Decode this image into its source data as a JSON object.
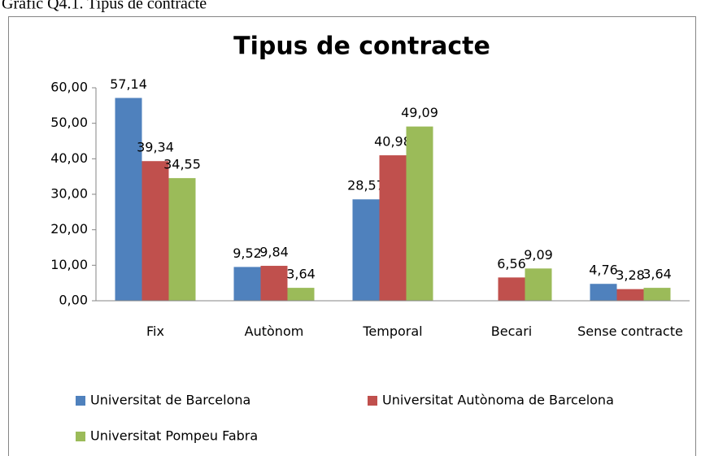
{
  "caption": "Grafic Q4.1. Tipus de contracte",
  "chart_data": {
    "type": "bar",
    "title": "Tipus de contracte",
    "categories": [
      "Fix",
      "Autònom",
      "Temporal",
      "Becari",
      "Sense contracte"
    ],
    "series": [
      {
        "name": "Universitat de Barcelona",
        "color": "#4f81bd",
        "values": [
          57.14,
          9.52,
          28.57,
          null,
          4.76
        ],
        "value_labels": [
          "57,14",
          "9,52",
          "28,57",
          null,
          "4,76"
        ]
      },
      {
        "name": "Universitat Autònoma de Barcelona",
        "color": "#c0504d",
        "values": [
          39.34,
          9.84,
          40.98,
          6.56,
          3.28
        ],
        "value_labels": [
          "39,34",
          "9,84",
          "40,98",
          "6,56",
          "3,28"
        ]
      },
      {
        "name": "Universitat Pompeu Fabra",
        "color": "#9bbb59",
        "values": [
          34.55,
          3.64,
          49.09,
          9.09,
          3.64
        ],
        "value_labels": [
          "34,55",
          "3,64",
          "49,09",
          "9,09",
          "3,64"
        ]
      }
    ],
    "ylim": [
      0,
      60
    ],
    "yticks": [
      {
        "value": 0,
        "label": "0,00"
      },
      {
        "value": 10,
        "label": "10,00"
      },
      {
        "value": 20,
        "label": "20,00"
      },
      {
        "value": 30,
        "label": "30,00"
      },
      {
        "value": 40,
        "label": "40,00"
      },
      {
        "value": 50,
        "label": "50,00"
      },
      {
        "value": 60,
        "label": "60,00"
      }
    ],
    "grid": false,
    "legend": "bottom"
  }
}
